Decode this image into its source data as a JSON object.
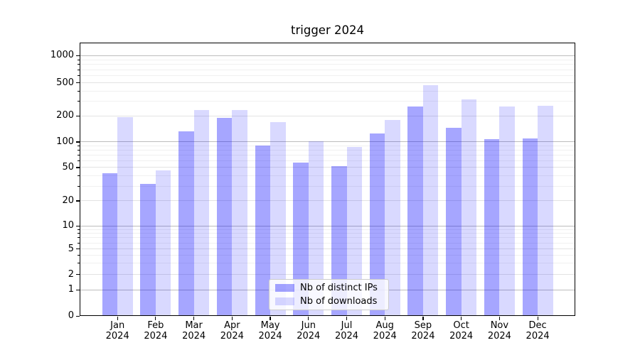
{
  "chart_data": {
    "type": "bar",
    "title": "trigger 2024",
    "categories": [
      "Jan 2024",
      "Feb 2024",
      "Mar 2024",
      "Apr 2024",
      "May 2024",
      "Jun 2024",
      "Jul 2024",
      "Aug 2024",
      "Sep 2024",
      "Oct 2024",
      "Nov 2024",
      "Dec 2024"
    ],
    "series": [
      {
        "name": "Nb of distinct IPs",
        "fill": "rgba(0,0,255,0.35)",
        "hex_on_white": "#A6A6FF",
        "values": [
          43,
          32,
          133,
          189,
          91,
          57,
          52,
          126,
          260,
          145,
          107,
          109
        ]
      },
      {
        "name": "Nb of downloads",
        "fill": "rgba(0,0,255,0.15)",
        "hex_on_white": "#D9D9FF",
        "values": [
          193,
          46,
          234,
          236,
          171,
          102,
          87,
          179,
          465,
          318,
          262,
          267
        ]
      }
    ],
    "y_axis": {
      "scale": "symlog",
      "tick_labels": [
        "0",
        "1",
        "2",
        "5",
        "10",
        "20",
        "50",
        "100",
        "200",
        "500",
        "1000"
      ],
      "tick_values": [
        0,
        1,
        2,
        5,
        10,
        20,
        50,
        100,
        200,
        500,
        1000
      ],
      "decade_ticks": [
        1,
        10,
        100,
        1000
      ],
      "minor_ticks": [
        3,
        4,
        6,
        7,
        8,
        9,
        30,
        40,
        60,
        70,
        80,
        90,
        300,
        400,
        600,
        700,
        800,
        900
      ],
      "anchors": [
        [
          0,
          0.0
        ],
        [
          1,
          0.0953
        ],
        [
          2,
          0.1514
        ],
        [
          5,
          0.2449
        ],
        [
          10,
          0.3291
        ],
        [
          20,
          0.4208
        ],
        [
          50,
          0.5429
        ],
        [
          100,
          0.6364
        ],
        [
          200,
          0.7317
        ],
        [
          500,
          0.8527
        ],
        [
          1000,
          0.9525
        ]
      ]
    },
    "legend_position": "lower center",
    "grid": true
  },
  "colors": {
    "grid_decade": "#bdbdbd",
    "grid_labeled": "#e3e3e3",
    "grid_minor": "#f0f0f0",
    "spine": "#000000",
    "background": "#ffffff"
  }
}
